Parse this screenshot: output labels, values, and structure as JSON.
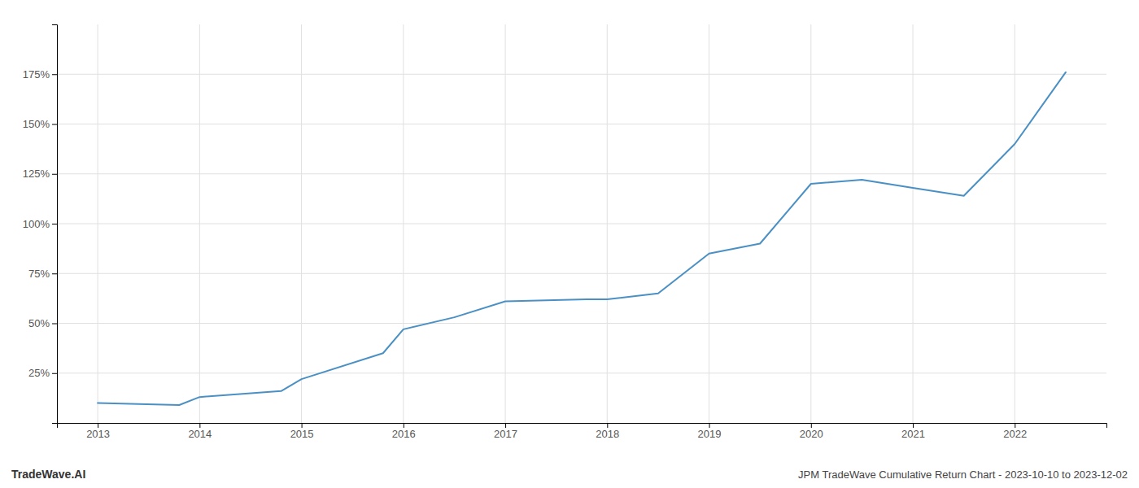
{
  "chart_data": {
    "type": "line",
    "title": "JPM TradeWave Cumulative Return Chart - 2023-10-10 to 2023-12-02",
    "annotations": [
      "TradeWave.AI"
    ],
    "x": [
      2013,
      2013.8,
      2014,
      2014.8,
      2015,
      2015.8,
      2016,
      2016.5,
      2017,
      2017.8,
      2018,
      2018.5,
      2019,
      2019.5,
      2020,
      2020.5,
      2021,
      2021.5,
      2022,
      2022.5
    ],
    "values": [
      10,
      9,
      13,
      16,
      22,
      35,
      47,
      53,
      61,
      62,
      62,
      65,
      85,
      90,
      120,
      122,
      118,
      114,
      140,
      176
    ],
    "color": "#4a90c4",
    "xlim": [
      2012.6,
      2022.9
    ],
    "ylim": [
      0,
      200
    ],
    "xticks": [
      2013,
      2014,
      2015,
      2016,
      2017,
      2018,
      2019,
      2020,
      2021,
      2022
    ],
    "yticks": [
      {
        "value": 25,
        "label": "25%"
      },
      {
        "value": 50,
        "label": "50%"
      },
      {
        "value": 75,
        "label": "75%"
      },
      {
        "value": 100,
        "label": "100%"
      },
      {
        "value": 125,
        "label": "125%"
      },
      {
        "value": 150,
        "label": "150%"
      },
      {
        "value": 175,
        "label": "175%"
      }
    ],
    "grid": true
  }
}
